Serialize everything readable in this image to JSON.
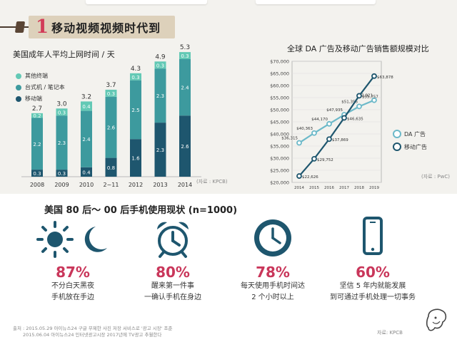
{
  "banner": {
    "number": "1",
    "title": "移动视频视频时代到"
  },
  "chart_data": [
    {
      "type": "bar",
      "title": "美国成年人平均上网时间 / 天",
      "categories": [
        "2008",
        "2009",
        "2010",
        "2~11",
        "2012",
        "2013",
        "2014"
      ],
      "totals": [
        "2.7",
        "3.0",
        "3.2",
        "3.7",
        "4.3",
        "4.9",
        "5.3"
      ],
      "series": [
        {
          "name": "移动端",
          "color": "#1e566e",
          "values": [
            0.3,
            0.3,
            0.4,
            0.8,
            1.6,
            2.3,
            2.6
          ],
          "labels": [
            "0.3",
            "0.3",
            "0.4",
            "0.8",
            "1.6",
            "2.3",
            "2.6"
          ]
        },
        {
          "name": "台式机 / 笔记本",
          "color": "#3d9a9e",
          "values": [
            2.2,
            2.3,
            2.4,
            2.6,
            2.5,
            2.3,
            2.4
          ],
          "labels": [
            "2.2",
            "2.3",
            "2.4",
            "2.6",
            "2.5",
            "2.3",
            "2.4"
          ]
        },
        {
          "name": "其他终端",
          "color": "#63c9b5",
          "values": [
            0.2,
            0.3,
            0.4,
            0.3,
            0.3,
            0.3,
            0.3
          ],
          "labels": [
            "0.2",
            "0.3",
            "0.4",
            "0.3",
            "0.3",
            "0.3",
            "0.3"
          ]
        }
      ],
      "legend_order": [
        "其他终端",
        "台式机 / 笔记本",
        "移动端"
      ],
      "source": "(자료 : KPCB)"
    },
    {
      "type": "line",
      "title": "全球 DA 广告及移动广告销售额规模对比",
      "x": [
        2014,
        2015,
        2016,
        2017,
        2018,
        2019
      ],
      "xlabels": [
        "2014",
        "2015",
        "2016",
        "2017",
        "2018",
        "2019"
      ],
      "ylim": [
        20000,
        70000
      ],
      "yticks": [
        20000,
        25000,
        30000,
        35000,
        40000,
        45000,
        50000,
        55000,
        60000,
        65000,
        70000
      ],
      "ytick_labels": [
        "$20,000",
        "$25,000",
        "$30,000",
        "$35,000",
        "$40,000",
        "$45,000",
        "$50,000",
        "$55,000",
        "$60,000",
        "$65,000",
        "$70,000"
      ],
      "series": [
        {
          "name": "DA 广告",
          "color": "#6cb9c9",
          "values": [
            36315,
            40363,
            44170,
            47935,
            51356,
            53921
          ],
          "labels": [
            "$36,315",
            "$40,363",
            "$44,170",
            "$47,935",
            "$51,356",
            "$53,921"
          ]
        },
        {
          "name": "移动广告",
          "color": "#1e566e",
          "values": [
            22626,
            29752,
            37869,
            46635,
            55757,
            63878
          ],
          "labels": [
            "$22,626",
            "$29,752",
            "$37,869",
            "$46,635",
            "$55,757",
            "$63,878"
          ]
        }
      ],
      "source": "(자료 : PwC)"
    }
  ],
  "survey": {
    "title": "美国 80 后～ 00 后手机使用现状 (n=1000)",
    "items": [
      {
        "icon": "sun-moon-icon",
        "percent": "87%",
        "line1": "不分白天黑夜",
        "line2": "手机放在手边"
      },
      {
        "icon": "alarm-clock-icon",
        "percent": "80%",
        "line1": "醒来第一件事",
        "line2": "一确认手机在身边"
      },
      {
        "icon": "clock-icon",
        "percent": "78%",
        "line1": "每天使用手机时间达",
        "line2": "2 个小时以上"
      },
      {
        "icon": "smartphone-icon",
        "percent": "60%",
        "line1": "坚信 5 年内就能发展",
        "line2": "到可通过手机处理一切事务"
      }
    ],
    "accent_color": "#c9365a",
    "icon_color": "#1e566e"
  },
  "footer": {
    "note1": "출처 : 2015.05.29 아이뉴스24 구글 무제한 사진 저장 서비스로 '광고 시장' 조준",
    "note2": "2015.06.04 아이뉴스24 인터넷광고시장 2017년에 TV광고 추월한다",
    "source": "자료: KPCB"
  }
}
